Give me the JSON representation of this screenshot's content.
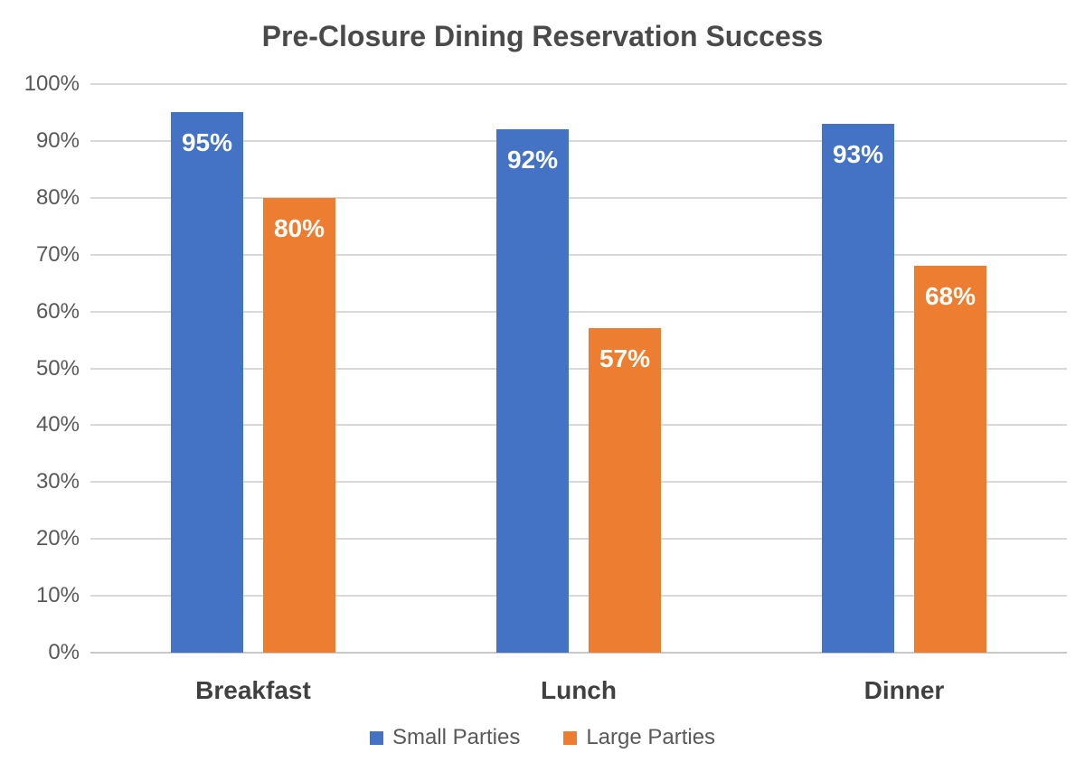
{
  "chart_data": {
    "type": "bar",
    "title": "Pre-Closure Dining Reservation Success",
    "categories": [
      "Breakfast",
      "Lunch",
      "Dinner"
    ],
    "series": [
      {
        "name": "Small Parties",
        "color": "#4472C4",
        "values": [
          95,
          92,
          93
        ],
        "labels": [
          "95%",
          "92%",
          "93%"
        ]
      },
      {
        "name": "Large Parties",
        "color": "#ED7D31",
        "values": [
          80,
          57,
          68
        ],
        "labels": [
          "80%",
          "57%",
          "68%"
        ]
      }
    ],
    "xlabel": "",
    "ylabel": "",
    "ylim": [
      0,
      100
    ],
    "yticks": [
      0,
      10,
      20,
      30,
      40,
      50,
      60,
      70,
      80,
      90,
      100
    ],
    "ytick_labels": [
      "0%",
      "10%",
      "20%",
      "30%",
      "40%",
      "50%",
      "60%",
      "70%",
      "80%",
      "90%",
      "100%"
    ],
    "grid": true,
    "legend_position": "bottom"
  },
  "colors": {
    "gridline": "#D9D9D9",
    "axis_line": "#C9C9C9",
    "title_text": "#4A4A4A",
    "tick_text": "#595959",
    "category_text": "#404040",
    "value_label_text": "#FFFFFF"
  }
}
